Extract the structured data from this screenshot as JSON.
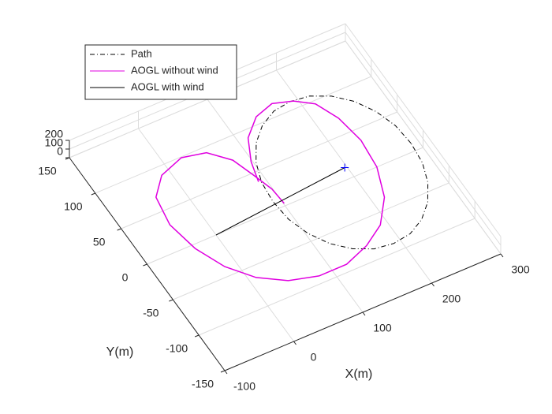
{
  "chart_data": {
    "type": "line3d",
    "xlabel": "X(m)",
    "ylabel": "Y(m)",
    "xlim": [
      -100,
      300
    ],
    "xticks": [
      -100,
      0,
      100,
      200,
      300
    ],
    "ylim": [
      -150,
      150
    ],
    "yticks": [
      -150,
      -100,
      -50,
      0,
      50,
      100,
      150
    ],
    "zlim": [
      0,
      200
    ],
    "zticks": [
      0,
      100,
      200
    ],
    "grid": true,
    "legend": "top-left",
    "series": [
      {
        "name": "Path",
        "color": "#000000",
        "style": "dash-dot",
        "x": [
          290,
          287,
          277,
          261,
          240,
          216,
          190,
          164,
          140,
          119,
          103,
          93,
          90,
          93,
          103,
          119,
          140,
          164,
          190,
          216,
          240,
          261,
          277,
          287,
          290
        ],
        "y": [
          10,
          36,
          60,
          81,
          97,
          107,
          110,
          107,
          97,
          81,
          60,
          36,
          10,
          -16,
          -40,
          -61,
          -77,
          -87,
          -90,
          -87,
          -77,
          -61,
          -40,
          -16,
          10
        ]
      },
      {
        "name": "AOGL without wind",
        "color": "#e000e0",
        "style": "solid",
        "x": [
          90,
          98,
          114,
          140,
          168,
          194,
          216,
          230,
          237,
          233,
          217,
          190,
          158,
          121,
          81,
          43,
          10,
          -16,
          -34,
          -43,
          -36,
          -12,
          24,
          56,
          79,
          90,
          99,
          101
        ],
        "y": [
          38,
          63,
          90,
          109,
          116,
          109,
          96,
          70,
          36,
          0,
          -36,
          -64,
          -80,
          -91,
          -91,
          -82,
          -64,
          -38,
          -5,
          32,
          68,
          89,
          99,
          93,
          73,
          47,
          24,
          3
        ]
      },
      {
        "name": "AOGL with wind",
        "color": "#000000",
        "style": "solid",
        "x": [
          0,
          197
        ],
        "y": [
          0,
          14
        ],
        "end_marker": "+",
        "end_marker_color": "#0000ff"
      }
    ]
  }
}
